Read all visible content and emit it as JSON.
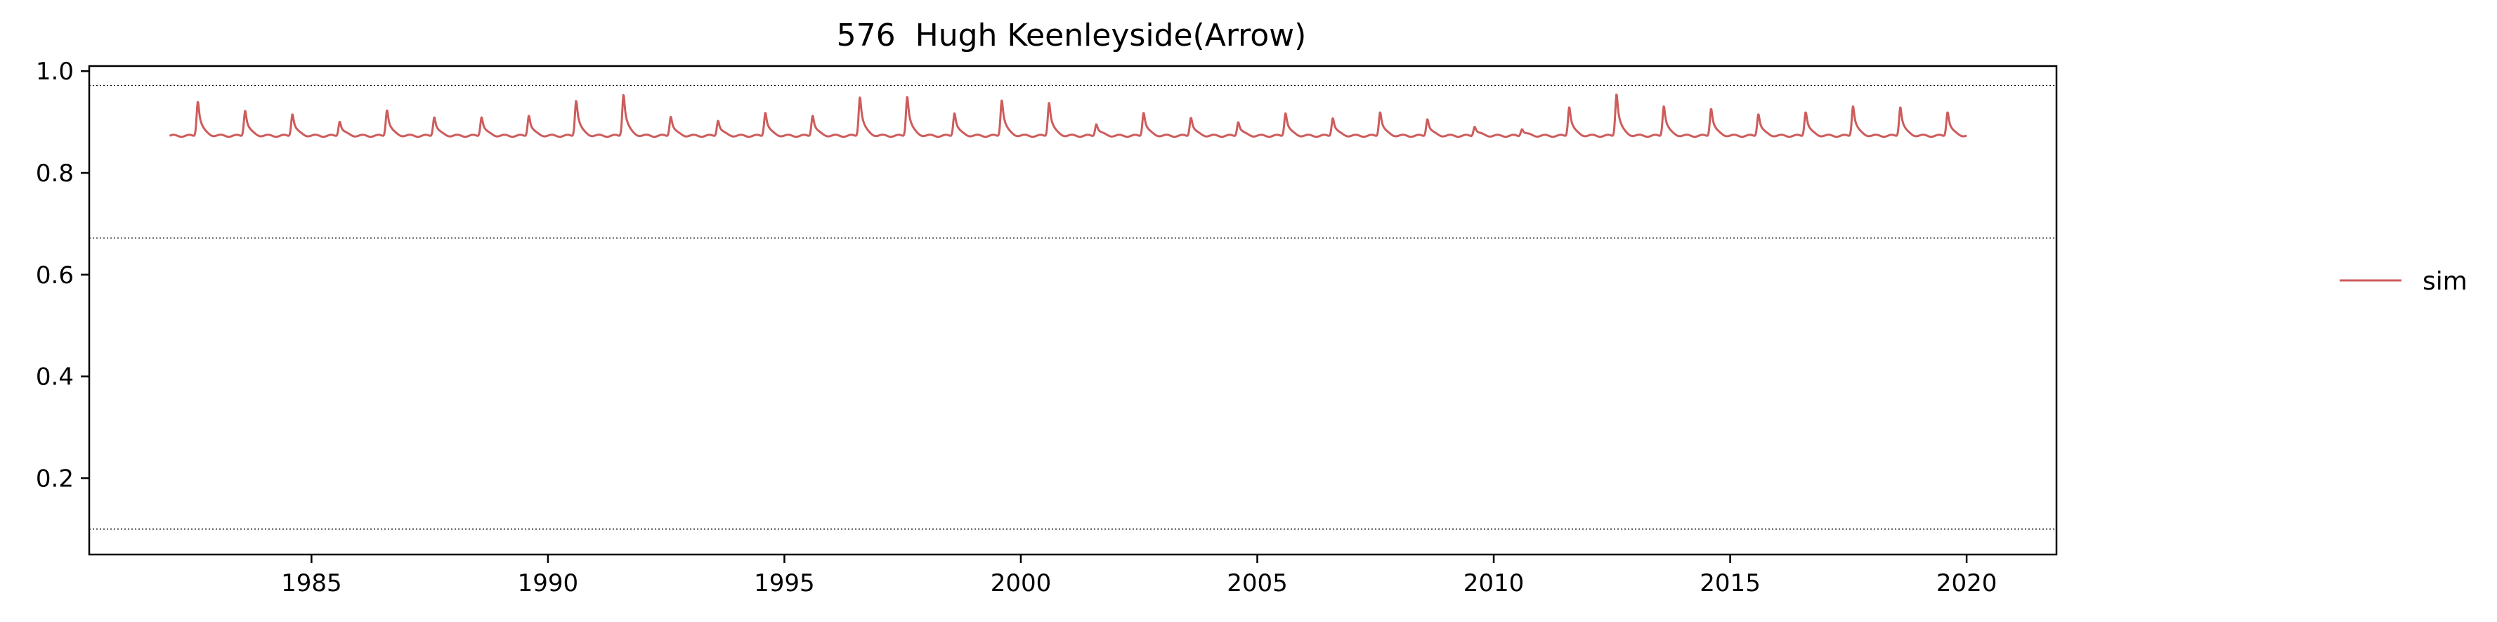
{
  "chart_data": {
    "type": "line",
    "title": "576  Hugh Keenleyside(Arrow)",
    "xlabel": "",
    "ylabel": "",
    "xlim": [
      1980.3,
      2021.9
    ],
    "ylim": [
      0.05,
      1.01
    ],
    "x_ticks": [
      1985,
      1990,
      1995,
      2000,
      2005,
      2010,
      2015,
      2020
    ],
    "x_tick_labels": [
      "1985",
      "1990",
      "1995",
      "2000",
      "2005",
      "2010",
      "2015",
      "2020"
    ],
    "y_ticks": [
      0.2,
      0.4,
      0.6,
      0.8,
      1.0
    ],
    "y_tick_labels": [
      "0.2",
      "0.4",
      "0.6",
      "0.8",
      "1.0"
    ],
    "hlines": [
      0.972,
      0.672,
      0.1
    ],
    "legend": {
      "position": "right",
      "entries": [
        {
          "label": "sim",
          "color": "#cd5c5c"
        }
      ]
    },
    "series": [
      {
        "name": "sim",
        "color": "#cd5c5c",
        "start_year": 1982.0,
        "end_year": 2020.0,
        "base": 0.873,
        "peaks": [
          [
            1982.6,
            0.943
          ],
          [
            1983.6,
            0.925
          ],
          [
            1984.6,
            0.918
          ],
          [
            1985.6,
            0.903
          ],
          [
            1986.6,
            0.926
          ],
          [
            1987.6,
            0.912
          ],
          [
            1988.6,
            0.912
          ],
          [
            1989.6,
            0.915
          ],
          [
            1990.6,
            0.945
          ],
          [
            1991.6,
            0.957
          ],
          [
            1992.6,
            0.913
          ],
          [
            1993.6,
            0.905
          ],
          [
            1994.6,
            0.921
          ],
          [
            1995.6,
            0.915
          ],
          [
            1996.6,
            0.952
          ],
          [
            1997.6,
            0.953
          ],
          [
            1998.6,
            0.92
          ],
          [
            1999.6,
            0.946
          ],
          [
            2000.6,
            0.941
          ],
          [
            2001.6,
            0.898
          ],
          [
            2002.6,
            0.921
          ],
          [
            2003.6,
            0.911
          ],
          [
            2004.6,
            0.902
          ],
          [
            2005.6,
            0.92
          ],
          [
            2006.6,
            0.91
          ],
          [
            2007.6,
            0.922
          ],
          [
            2008.6,
            0.908
          ],
          [
            2009.6,
            0.893
          ],
          [
            2010.6,
            0.888
          ],
          [
            2011.6,
            0.932
          ],
          [
            2012.6,
            0.958
          ],
          [
            2013.6,
            0.934
          ],
          [
            2014.6,
            0.929
          ],
          [
            2015.6,
            0.918
          ],
          [
            2016.6,
            0.922
          ],
          [
            2017.6,
            0.934
          ],
          [
            2018.6,
            0.932
          ],
          [
            2019.6,
            0.922
          ]
        ]
      }
    ]
  }
}
